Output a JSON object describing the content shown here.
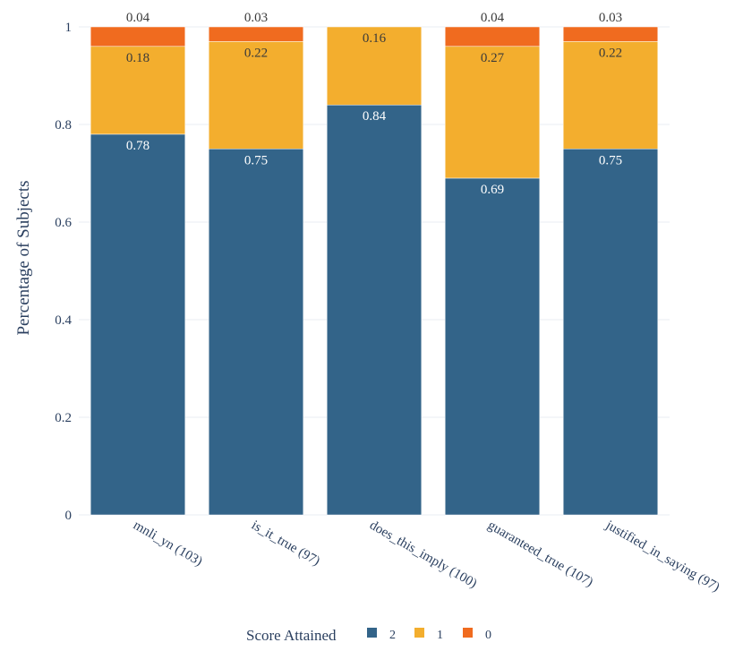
{
  "chart_data": {
    "type": "bar",
    "stacked": true,
    "categories": [
      "mnli_yn (103)",
      "is_it_true (97)",
      "does_this_imply (100)",
      "guaranteed_true (107)",
      "justified_in_saying (97)"
    ],
    "series": [
      {
        "name": "2",
        "color": "#336489",
        "values": [
          0.78,
          0.75,
          0.84,
          0.69,
          0.75
        ],
        "labels": [
          "0.78",
          "0.75",
          "0.84",
          "0.69",
          "0.75"
        ]
      },
      {
        "name": "1",
        "color": "#f3ae2e",
        "values": [
          0.18,
          0.22,
          0.16,
          0.27,
          0.22
        ],
        "labels": [
          "0.18",
          "0.22",
          "0.16",
          "0.27",
          "0.22"
        ]
      },
      {
        "name": "0",
        "color": "#f06b1f",
        "values": [
          0.04,
          0.03,
          0.0,
          0.04,
          0.03
        ],
        "labels": [
          "0.04",
          "0.03",
          "",
          "0.04",
          "0.03"
        ]
      }
    ],
    "ylabel": "Percentage of Subjects",
    "xlabel": "",
    "ylim": [
      0,
      1
    ],
    "yticks": [
      "0",
      "0.2",
      "0.4",
      "0.6",
      "0.8",
      "1"
    ],
    "legend": {
      "title": "Score Attained",
      "position": "bottom-center",
      "items": [
        "2",
        "1",
        "0"
      ]
    }
  }
}
